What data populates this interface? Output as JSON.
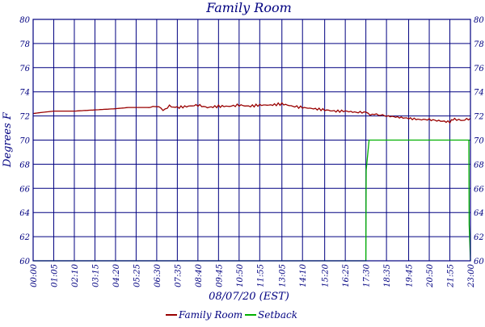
{
  "chart_data": {
    "type": "line",
    "title": "Family Room",
    "xlabel": "08/07/20 (EST)",
    "ylabel": "Degrees F",
    "ylim": [
      60,
      80
    ],
    "yticks": [
      "60",
      "62",
      "64",
      "66",
      "68",
      "70",
      "72",
      "74",
      "76",
      "78",
      "80"
    ],
    "x_range": [
      "00:00",
      "23:00"
    ],
    "xticks": [
      "00:00",
      "01:05",
      "02:10",
      "03:15",
      "04:20",
      "05:25",
      "06:30",
      "07:35",
      "08:40",
      "09:45",
      "10:50",
      "11:55",
      "13:05",
      "14:10",
      "15:20",
      "16:25",
      "17:30",
      "18:35",
      "19:45",
      "20:50",
      "21:55",
      "23:00"
    ],
    "grid": true,
    "legend": "bottom-center",
    "series": [
      {
        "name": "Family Room",
        "color": "#990000",
        "x": [
          "00:00",
          "00:30",
          "01:05",
          "02:10",
          "03:15",
          "04:20",
          "05:00",
          "05:25",
          "06:00",
          "06:30",
          "06:50",
          "07:10",
          "07:35",
          "08:10",
          "08:40",
          "09:10",
          "09:45",
          "10:20",
          "10:50",
          "11:20",
          "11:55",
          "12:30",
          "13:05",
          "13:40",
          "14:10",
          "14:45",
          "15:20",
          "15:50",
          "16:25",
          "17:00",
          "17:30",
          "17:50",
          "18:10",
          "18:35",
          "19:10",
          "19:45",
          "20:20",
          "20:50",
          "21:20",
          "21:55",
          "22:10",
          "22:30",
          "23:00"
        ],
        "values": [
          72.2,
          72.3,
          72.4,
          72.4,
          72.5,
          72.6,
          72.7,
          72.7,
          72.7,
          72.8,
          72.5,
          72.8,
          72.7,
          72.8,
          72.9,
          72.7,
          72.8,
          72.8,
          72.9,
          72.8,
          72.9,
          72.9,
          73.0,
          72.8,
          72.7,
          72.6,
          72.5,
          72.4,
          72.4,
          72.3,
          72.3,
          72.1,
          72.1,
          72.0,
          71.9,
          71.8,
          71.7,
          71.7,
          71.6,
          71.5,
          71.8,
          71.6,
          71.8
        ]
      },
      {
        "name": "Setback",
        "color": "#00b000",
        "x": [
          "00:00",
          "17:30",
          "17:31",
          "17:40",
          "22:55",
          "22:56",
          "23:00"
        ],
        "values": [
          60,
          60,
          67.5,
          70,
          70,
          63,
          60
        ]
      }
    ]
  }
}
